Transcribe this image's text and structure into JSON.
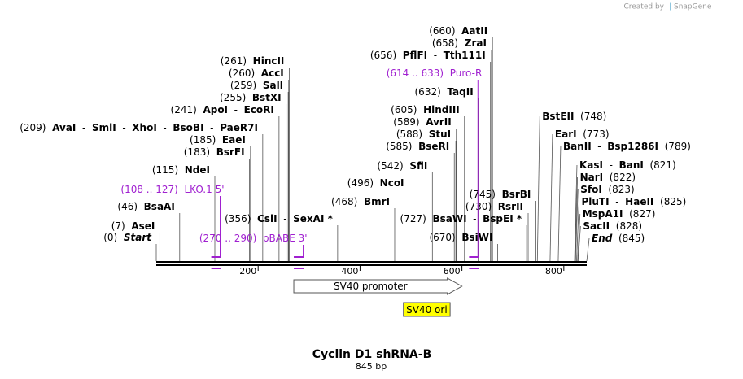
{
  "credit": {
    "created_by": "Created by",
    "brand": "SnapGene"
  },
  "title": "Cyclin D1 shRNA-B",
  "length_label": "845 bp",
  "sequence_length": 845,
  "axis_ticks": [
    {
      "pos": 200,
      "label": "200"
    },
    {
      "pos": 400,
      "label": "400"
    },
    {
      "pos": 600,
      "label": "600"
    },
    {
      "pos": 800,
      "label": "800"
    }
  ],
  "sites": [
    {
      "pos": 0,
      "num": "(0)",
      "names": [
        "Start"
      ],
      "italic": true,
      "side": "left",
      "row": 296
    },
    {
      "pos": 7,
      "num": "(7)",
      "names": [
        "AseI"
      ],
      "side": "left",
      "row": 282
    },
    {
      "pos": 46,
      "num": "(46)",
      "names": [
        "BsaAI"
      ],
      "side": "left",
      "row": 258
    },
    {
      "pos": 115,
      "num": "(115)",
      "names": [
        "NdeI"
      ],
      "side": "left",
      "row": 213
    },
    {
      "pos": 183,
      "num": "(183)",
      "names": [
        "BsrFI"
      ],
      "side": "left",
      "row": 191
    },
    {
      "pos": 185,
      "num": "(185)",
      "names": [
        "EaeI"
      ],
      "side": "left",
      "row": 176
    },
    {
      "pos": 209,
      "num": "(209)",
      "names": [
        "AvaI",
        "SmlI",
        "XhoI",
        "BsoBI",
        "PaeR7I"
      ],
      "side": "left",
      "row": 161
    },
    {
      "pos": 241,
      "num": "(241)",
      "names": [
        "ApoI",
        "EcoRI"
      ],
      "side": "left",
      "row": 139
    },
    {
      "pos": 255,
      "num": "(255)",
      "names": [
        "BstXI"
      ],
      "side": "left",
      "row": 124
    },
    {
      "pos": 259,
      "num": "(259)",
      "names": [
        "SalI"
      ],
      "side": "left",
      "row": 109
    },
    {
      "pos": 260,
      "num": "(260)",
      "names": [
        "AccI"
      ],
      "side": "left",
      "row": 94
    },
    {
      "pos": 261,
      "num": "(261)",
      "names": [
        "HincII"
      ],
      "side": "left",
      "row": 79
    },
    {
      "pos": 356,
      "num": "(356)",
      "names": [
        "CsiI",
        "SexAI *"
      ],
      "side": "left",
      "row": 273
    },
    {
      "pos": 468,
      "num": "(468)",
      "names": [
        "BmrI"
      ],
      "side": "left",
      "row": 252
    },
    {
      "pos": 496,
      "num": "(496)",
      "names": [
        "NcoI"
      ],
      "side": "left",
      "row": 229
    },
    {
      "pos": 542,
      "num": "(542)",
      "names": [
        "SfiI"
      ],
      "side": "left",
      "row": 208
    },
    {
      "pos": 585,
      "num": "(585)",
      "names": [
        "BseRI"
      ],
      "side": "left",
      "row": 184
    },
    {
      "pos": 588,
      "num": "(588)",
      "names": [
        "StuI"
      ],
      "side": "left",
      "row": 169
    },
    {
      "pos": 589,
      "num": "(589)",
      "names": [
        "AvrII"
      ],
      "side": "left",
      "row": 154
    },
    {
      "pos": 605,
      "num": "(605)",
      "names": [
        "HindIII"
      ],
      "side": "left",
      "row": 139
    },
    {
      "pos": 632,
      "num": "(632)",
      "names": [
        "TaqII"
      ],
      "side": "left",
      "row": 117
    },
    {
      "pos": 656,
      "num": "(656)",
      "names": [
        "PflFI",
        "Tth111I"
      ],
      "side": "left",
      "row": 72
    },
    {
      "pos": 658,
      "num": "(658)",
      "names": [
        "ZraI"
      ],
      "side": "left",
      "row": 57
    },
    {
      "pos": 660,
      "num": "(660)",
      "names": [
        "AatII"
      ],
      "side": "left",
      "row": 42
    },
    {
      "pos": 670,
      "num": "(670)",
      "names": [
        "BsiWI"
      ],
      "side": "left",
      "row": 296
    },
    {
      "pos": 727,
      "num": "(727)",
      "names": [
        "BsaWI",
        "BspEI *"
      ],
      "side": "left",
      "row": 273
    },
    {
      "pos": 730,
      "num": "(730)",
      "names": [
        "RsrII"
      ],
      "side": "left",
      "row": 258
    },
    {
      "pos": 745,
      "num": "(745)",
      "names": [
        "BsrBI"
      ],
      "side": "left",
      "row": 243
    },
    {
      "pos": 748,
      "num": "(748)",
      "names": [
        "BstEII"
      ],
      "side": "right",
      "row": 147
    },
    {
      "pos": 773,
      "num": "(773)",
      "names": [
        "EarI"
      ],
      "side": "right",
      "row": 169
    },
    {
      "pos": 789,
      "num": "(789)",
      "names": [
        "BanII",
        "Bsp1286I"
      ],
      "side": "right",
      "row": 184
    },
    {
      "pos": 821,
      "num": "(821)",
      "names": [
        "KasI",
        "BanI"
      ],
      "side": "right",
      "row": 207
    },
    {
      "pos": 822,
      "num": "(822)",
      "names": [
        "NarI"
      ],
      "side": "right",
      "row": 222
    },
    {
      "pos": 823,
      "num": "(823)",
      "names": [
        "SfoI"
      ],
      "side": "right",
      "row": 237
    },
    {
      "pos": 825,
      "num": "(825)",
      "names": [
        "PluTI",
        "HaeII"
      ],
      "side": "right",
      "row": 252
    },
    {
      "pos": 827,
      "num": "(827)",
      "names": [
        "MspA1I"
      ],
      "side": "right",
      "row": 267
    },
    {
      "pos": 828,
      "num": "(828)",
      "names": [
        "SacII"
      ],
      "side": "right",
      "row": 282
    },
    {
      "pos": 845,
      "num": "(845)",
      "names": [
        "End"
      ],
      "italic": true,
      "side": "right",
      "row": 297
    }
  ],
  "primers": [
    {
      "label": "(108 .. 127)  LKO.1 5'",
      "start": 108,
      "end": 127,
      "row": 237
    },
    {
      "label": "(270 .. 290)  pBABE 3'",
      "start": 270,
      "end": 290,
      "row": 297
    },
    {
      "label": "(614 .. 633)  Puro-R",
      "start": 614,
      "end": 633,
      "row": 94
    }
  ],
  "features": [
    {
      "name": "SV40 promoter",
      "start": 270,
      "end": 600,
      "kind": "arrow"
    },
    {
      "name": "SV40 ori",
      "start": 450,
      "end": 580,
      "kind": "box"
    }
  ],
  "colors": {
    "primer": "#a020d0",
    "ori_fill": "#ffff00",
    "line": "#000000"
  }
}
